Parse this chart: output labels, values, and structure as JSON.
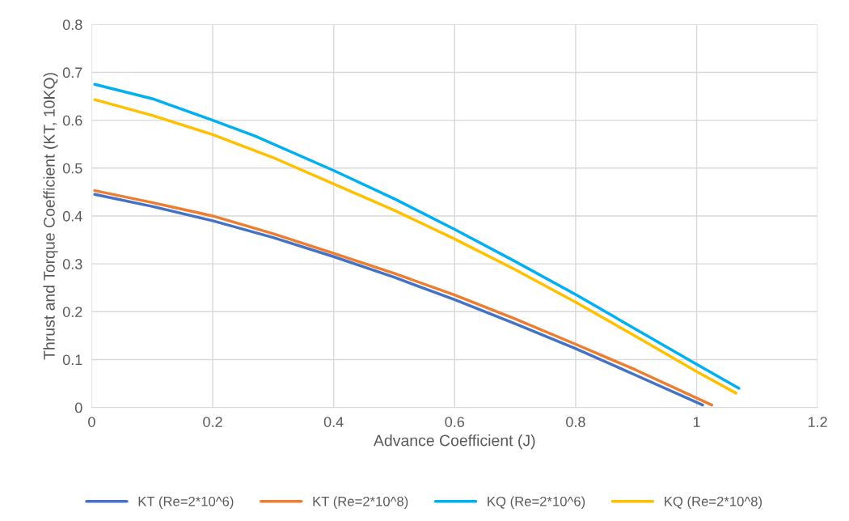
{
  "chart_data": {
    "type": "line",
    "xlabel": "Advance Coefficient (J)",
    "ylabel": "Thrust and Torque Coefficient (KT, 10KQ)",
    "xlim": [
      0,
      1.2
    ],
    "xticks": [
      0,
      0.2,
      0.4,
      0.6,
      0.8,
      1,
      1.2
    ],
    "ylim": [
      0,
      0.8
    ],
    "yticks": [
      0,
      0.1,
      0.2,
      0.3,
      0.4,
      0.5,
      0.6,
      0.7,
      0.8
    ],
    "grid": true,
    "legend": "bottom",
    "marker": "none",
    "line_style": "solid",
    "series": [
      {
        "name": "KT (Re=2*10^6)",
        "color": "#4472c4",
        "x": [
          0.005,
          0.1,
          0.2,
          0.3,
          0.4,
          0.5,
          0.6,
          0.7,
          0.8,
          0.9,
          1.01
        ],
        "values": [
          0.445,
          0.42,
          0.39,
          0.355,
          0.315,
          0.272,
          0.225,
          0.175,
          0.123,
          0.067,
          0.005
        ]
      },
      {
        "name": "KT (Re=2*10^8)",
        "color": "#ed7d31",
        "x": [
          0.005,
          0.1,
          0.2,
          0.3,
          0.4,
          0.5,
          0.6,
          0.7,
          0.8,
          0.9,
          1.025
        ],
        "values": [
          0.453,
          0.428,
          0.4,
          0.363,
          0.322,
          0.28,
          0.235,
          0.185,
          0.132,
          0.078,
          0.005
        ]
      },
      {
        "name": "KQ (Re=2*10^6)",
        "color": "#00b0f0",
        "x": [
          0.005,
          0.1,
          0.2,
          0.27,
          0.4,
          0.5,
          0.6,
          0.7,
          0.8,
          0.9,
          1.0,
          1.07
        ],
        "values": [
          0.675,
          0.645,
          0.6,
          0.567,
          0.495,
          0.436,
          0.372,
          0.305,
          0.236,
          0.163,
          0.09,
          0.04
        ]
      },
      {
        "name": "KQ (Re=2*10^8)",
        "color": "#ffc000",
        "x": [
          0.005,
          0.1,
          0.2,
          0.3,
          0.4,
          0.5,
          0.6,
          0.7,
          0.8,
          0.9,
          1.0,
          1.065
        ],
        "values": [
          0.643,
          0.61,
          0.57,
          0.522,
          0.467,
          0.412,
          0.352,
          0.288,
          0.22,
          0.148,
          0.075,
          0.03
        ]
      }
    ]
  }
}
